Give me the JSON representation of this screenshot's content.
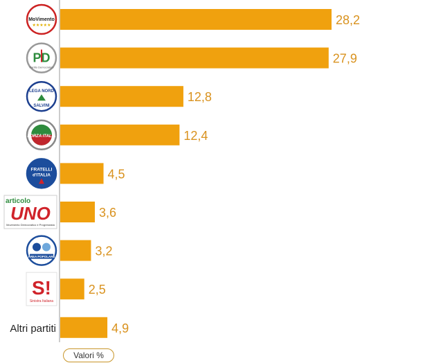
{
  "chart_data": {
    "type": "bar",
    "orientation": "horizontal",
    "categories": [
      "MoVimento 5 Stelle",
      "PD",
      "Lega Nord",
      "Forza Italia",
      "Fratelli d'Italia",
      "Articolo UNO",
      "Area Popolare",
      "Sinistra Italiana",
      "Altri partiti"
    ],
    "values": [
      28.2,
      27.9,
      12.8,
      12.4,
      4.5,
      3.6,
      3.2,
      2.5,
      4.9
    ],
    "value_labels": [
      "28,2",
      "27,9",
      "12,8",
      "12,4",
      "4,5",
      "3,6",
      "3,2",
      "2,5",
      "4,9"
    ],
    "legend_label": "Valori %",
    "bar_color": "#f0a10e",
    "label_color": "#d9921e",
    "xlim": [
      0,
      30
    ],
    "grid": false,
    "legend_position": "bottom-left"
  },
  "logos": [
    {
      "icon": "movimento-5-stelle-logo-icon",
      "text": "MoVimento",
      "sub": "★★★★★",
      "sub2": "",
      "bg": "#ffffff",
      "ring": "#cc2222",
      "color": "#222222"
    },
    {
      "icon": "pd-logo-icon",
      "text": "PD",
      "sub": "Partito Democratico",
      "sub2": "",
      "bg": "#ffffff",
      "ring": "#999999",
      "color": "#2e8b3d"
    },
    {
      "icon": "lega-nord-logo-icon",
      "text": "LEGA NORD",
      "sub": "SALVINI",
      "sub2": "",
      "bg": "#ffffff",
      "ring": "#1c3f8f",
      "color": "#1c3f8f"
    },
    {
      "icon": "forza-italia-logo-icon",
      "text": "FORZA ITALIA",
      "sub": "",
      "sub2": "",
      "bg": "#ffffff",
      "ring": "#888888",
      "color": "#c0262d"
    },
    {
      "icon": "fratelli-d-italia-logo-icon",
      "text": "FRATELLI",
      "sub": "d'ITALIA",
      "sub2": "",
      "bg": "#1c4d9c",
      "ring": "#1c4d9c",
      "color": "#ffffff"
    },
    {
      "icon": "articolo-uno-logo-icon",
      "text": "UNO",
      "sub": "articolo",
      "sub2": "Movimento Democratico e Progressista",
      "bg": "#ffffff",
      "ring": "#cccccc",
      "color": "#d0232a"
    },
    {
      "icon": "area-popolare-logo-icon",
      "text": "AREA POPOLARE",
      "sub": "",
      "sub2": "",
      "bg": "#ffffff",
      "ring": "#1c4d9c",
      "color": "#1c4d9c"
    },
    {
      "icon": "sinistra-italiana-logo-icon",
      "text": "S!",
      "sub": "Sinistra Italiana",
      "sub2": "",
      "bg": "#ffffff",
      "ring": "#dddddd",
      "color": "#d0232a"
    }
  ]
}
